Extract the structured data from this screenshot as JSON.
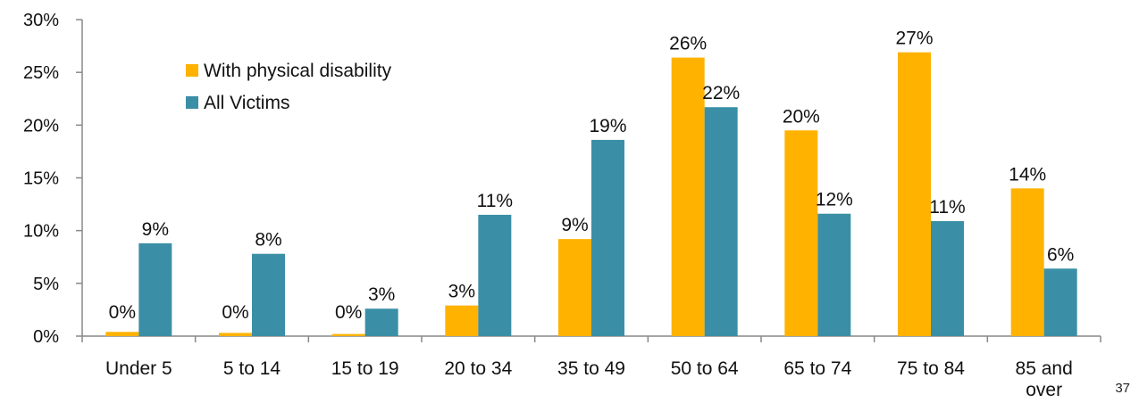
{
  "colors": {
    "disability": "#FFB200",
    "all_victims": "#3A8FA6",
    "axis": "#888888",
    "text": "#111111"
  },
  "chart_data": {
    "type": "bar",
    "title": "",
    "xlabel": "",
    "ylabel": "",
    "ylim": [
      0,
      30
    ],
    "yticks": [
      "0%",
      "5%",
      "10%",
      "15%",
      "20%",
      "25%",
      "30%"
    ],
    "categories": [
      [
        "Under 5"
      ],
      [
        "5 to 14"
      ],
      [
        "15 to 19"
      ],
      [
        "20 to 34"
      ],
      [
        "35 to 49"
      ],
      [
        "50 to 64"
      ],
      [
        "65 to 74"
      ],
      [
        "75 to 84"
      ],
      [
        "85 and",
        "over"
      ]
    ],
    "series": [
      {
        "name": "With physical disability",
        "color": "#FFB200",
        "values": [
          0.4,
          0.3,
          0.2,
          2.9,
          9.2,
          26.4,
          19.5,
          26.9,
          14.0
        ],
        "labels": [
          "0%",
          "0%",
          "0%",
          "3%",
          "9%",
          "26%",
          "20%",
          "27%",
          "14%"
        ]
      },
      {
        "name": "All Victims",
        "color": "#3A8FA6",
        "values": [
          8.8,
          7.8,
          2.6,
          11.5,
          18.6,
          21.7,
          11.6,
          10.9,
          6.4
        ],
        "labels": [
          "9%",
          "8%",
          "3%",
          "11%",
          "19%",
          "22%",
          "12%",
          "11%",
          "6%"
        ]
      }
    ],
    "grid": false,
    "legend": "top-left"
  },
  "page_number": "37"
}
